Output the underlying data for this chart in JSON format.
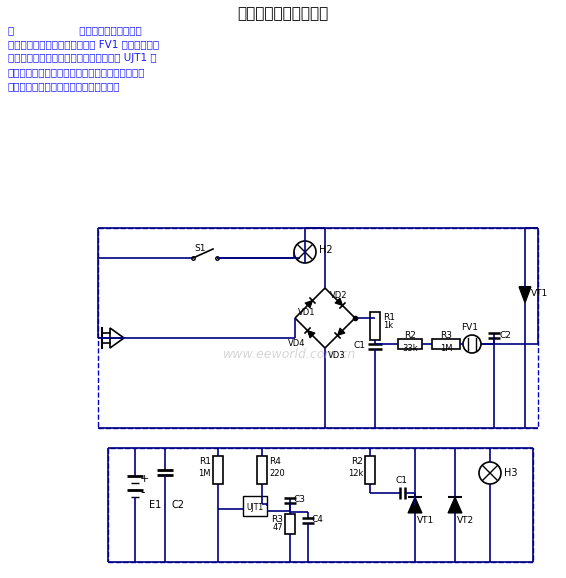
{
  "title": "晶闸管控制闪光灯电路",
  "title_fontsize": 11,
  "text_color": "#1a1aff",
  "bg_color": "#ffffff",
  "watermark": "www.eeworld.com.cn",
  "line_color": "#000080",
  "line_color2": "#0000cd",
  "para_lines": [
    "图                    示出两个利用晶闸管控",
    "制闪光灯的电路。前者利用氟管 FV1 的转折导通电",
    "压触发晶闸管导通，后者利用单结晶体管 UJT1 触",
    "发晶闸管导通。前者由交流供电，后者则由直流供",
    "电。为使灯闪烁，电路中接入换相电容。"
  ]
}
